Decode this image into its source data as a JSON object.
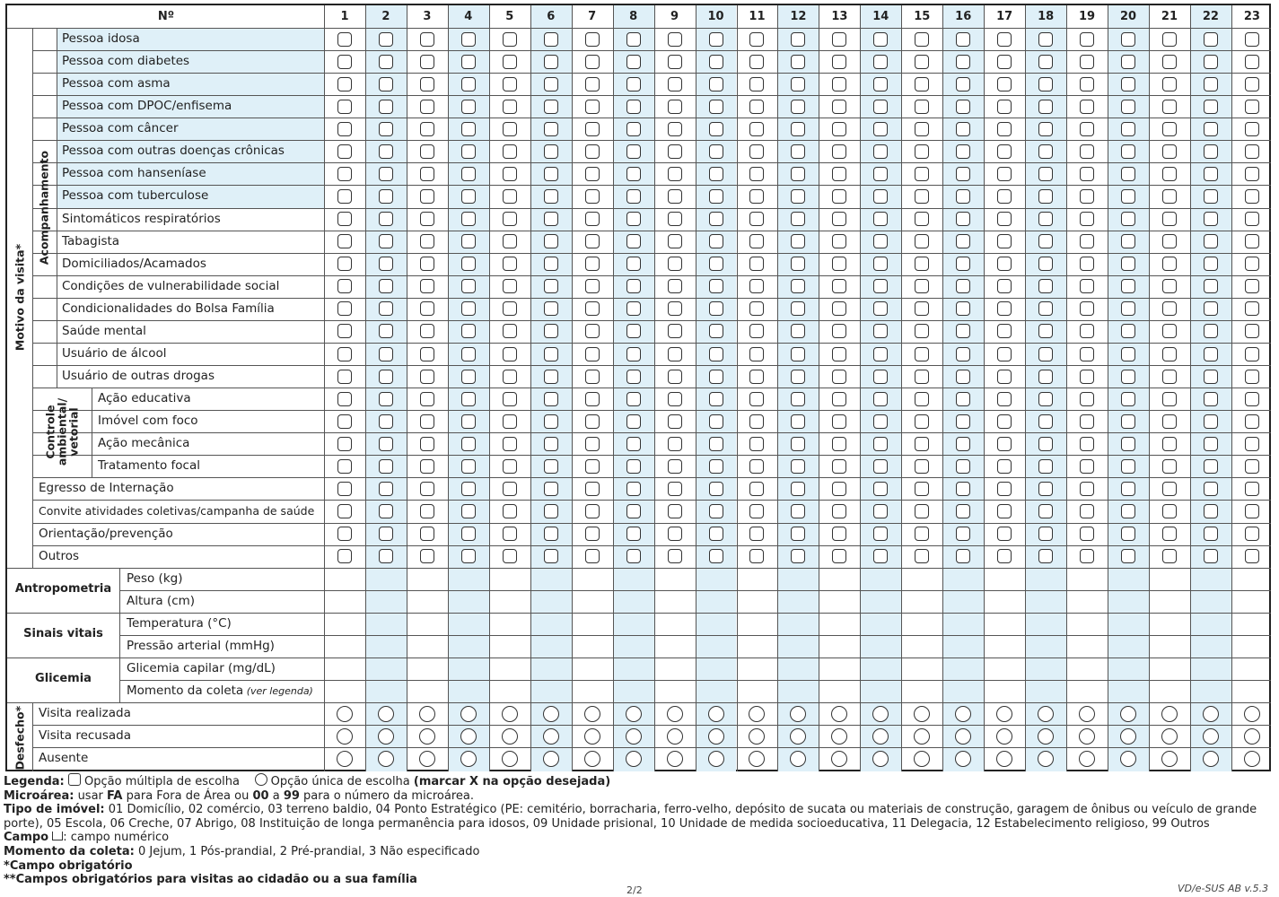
{
  "header": {
    "no_label": "Nº"
  },
  "columns": [
    "1",
    "2",
    "3",
    "4",
    "5",
    "6",
    "7",
    "8",
    "9",
    "10",
    "11",
    "12",
    "13",
    "14",
    "15",
    "16",
    "17",
    "18",
    "19",
    "20",
    "21",
    "22",
    "23"
  ],
  "groups": {
    "motivo": "Motivo da visita",
    "motivo_mark": "*",
    "acompanhamento": "Acompanhamento",
    "controle": [
      "Controle",
      "ambiental/",
      "vetorial"
    ],
    "desfecho": "Desfecho",
    "desfecho_mark": "*",
    "antropometria": "Antropometria",
    "sinais": "Sinais vitais",
    "glicemia": "Glicemia"
  },
  "acompanhamento_rows": [
    "Pessoa idosa",
    "Pessoa com diabetes",
    "Pessoa com asma",
    "Pessoa com DPOC/enfisema",
    "Pessoa com câncer",
    "Pessoa com outras doenças crônicas",
    "Pessoa com hanseníase",
    "Pessoa com tuberculose",
    "Sintomáticos respiratórios",
    "Tabagista",
    "Domiciliados/Acamados",
    "Condições de vulnerabilidade social",
    "Condicionalidades do Bolsa Família",
    "Saúde mental",
    "Usuário de álcool",
    "Usuário de outras drogas"
  ],
  "controle_rows": [
    "Ação educativa",
    "Imóvel com foco",
    "Ação mecânica",
    "Tratamento focal"
  ],
  "other_rows": [
    "Egresso de Internação",
    "Convite atividades coletivas/campanha de saúde",
    "Orientação/prevenção",
    "Outros"
  ],
  "measure_rows": {
    "peso": "Peso (kg)",
    "altura": "Altura (cm)",
    "temperatura": "Temperatura (°C)",
    "pressao": "Pressão arterial (mmHg)",
    "glicemia_capilar": "Glicemia capilar (mg/dL)",
    "momento": "Momento da coleta",
    "momento_note": "(ver legenda)"
  },
  "desfecho_rows": [
    "Visita realizada",
    "Visita recusada",
    "Ausente"
  ],
  "legend": {
    "l1_label": "Legenda:",
    "l1_multi": "Opção múltipla de escolha",
    "l1_single": "Opção única de escolha",
    "l1_instr": "(marcar X na opção desejada)",
    "l2_label": "Microárea:",
    "l2_a": "usar",
    "l2_fa": "FA",
    "l2_b": "para Fora de Área ou",
    "l2_00": "00",
    "l2_c": "a",
    "l2_99": "99",
    "l2_d": "para o número da microárea.",
    "l3_label": "Tipo de imóvel:",
    "l3_text": "01 Domicílio, 02 comércio, 03 terreno baldio, 04 Ponto Estratégico (PE: cemitério, borracharia, ferro-velho, depósito de sucata ou materiais de construção, garagem de ônibus ou veículo de grande porte), 05 Escola, 06 Creche, 07 Abrigo, 08 Instituição de longa permanência para idosos, 09 Unidade prisional, 10 Unidade de medida socioeducativa, 11 Delegacia, 12 Estabelecimento religioso, 99 Outros",
    "l4_label": "Campo",
    "l4_text": ": campo numérico",
    "l5_label": "Momento da coleta:",
    "l5_text": "0 Jejum, 1 Pós-prandial, 2 Pré-prandial, 3 Não especificado",
    "l6_mark": "*",
    "l6_text": "Campo obrigatório",
    "l7_mark": "**",
    "l7_text": "Campos obrigatórios para visitas ao cidadão ou a sua família"
  },
  "footer": {
    "page": "2/2",
    "version": "VD/e-SUS AB v.5.3"
  },
  "colors": {
    "shade": "#dff0f8",
    "line": "#555555",
    "border": "#222222"
  }
}
